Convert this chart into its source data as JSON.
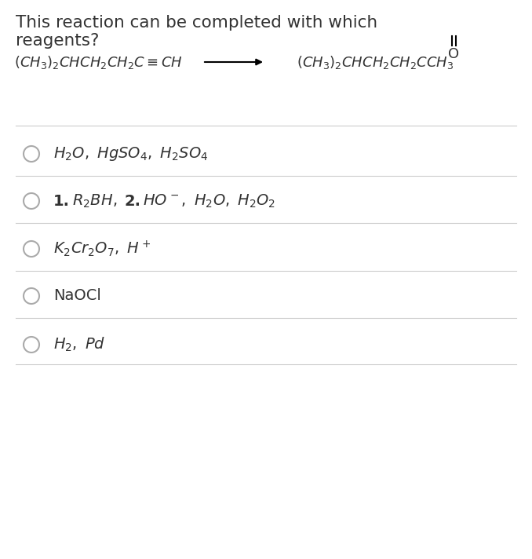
{
  "title_line1": "This reaction can be completed with which",
  "title_line2": "reagents?",
  "bg_color": "#ffffff",
  "text_color": "#333333",
  "line_color": "#cccccc",
  "circle_color": "#aaaaaa",
  "title_fontsize": 15.5,
  "option_fontsize": 14,
  "reaction_fontsize": 12,
  "fig_width": 6.78,
  "fig_height": 7.12,
  "dpi": 100
}
